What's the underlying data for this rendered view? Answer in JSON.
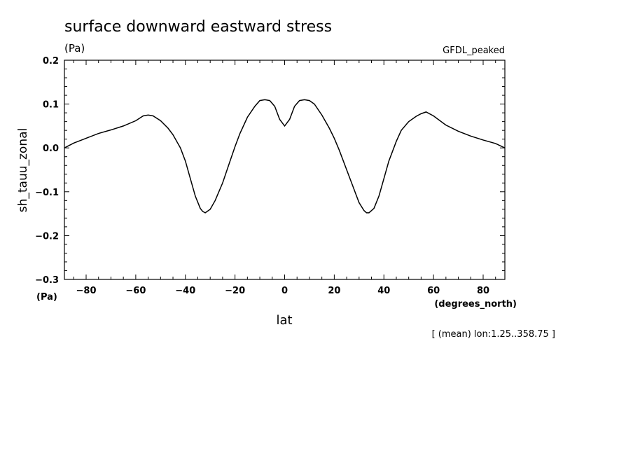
{
  "chart_data": {
    "type": "line",
    "title": "surface downward eastward stress",
    "units_label": "(Pa)",
    "model_label": "GFDL_peaked",
    "ylabel": "sh_tauu_zonal",
    "y_units_label": "(Pa)",
    "xlabel": "lat",
    "x_units_label": "(degrees_north)",
    "footnote": "[ (mean) lon:1.25..358.75 ]",
    "xlim": [
      -88.75,
      88.75
    ],
    "ylim": [
      -0.3,
      0.2
    ],
    "xticks": [
      -80,
      -60,
      -40,
      -20,
      0,
      20,
      40,
      60,
      80
    ],
    "xtick_labels": [
      "−80",
      "−60",
      "−40",
      "−20",
      "0",
      "20",
      "40",
      "60",
      "80"
    ],
    "yticks": [
      -0.3,
      -0.2,
      -0.1,
      0.0,
      0.1,
      0.2
    ],
    "ytick_labels": [
      "−0.3",
      "−0.2",
      "−0.1",
      "0.0",
      "0.1",
      "0.2"
    ],
    "grid": false,
    "series": [
      {
        "x": [
          -88.75,
          -85,
          -80,
          -75,
          -70,
          -65,
          -60,
          -57,
          -55,
          -53,
          -50,
          -47,
          -45,
          -42,
          -40,
          -38,
          -36,
          -34,
          -33,
          -32,
          -30,
          -28,
          -25,
          -22,
          -20,
          -18,
          -15,
          -12,
          -10,
          -8,
          -6,
          -4,
          -2,
          0,
          2,
          4,
          6,
          8,
          10,
          12,
          15,
          18,
          20,
          22,
          25,
          28,
          30,
          32,
          33,
          34,
          36,
          38,
          40,
          42,
          45,
          47,
          50,
          53,
          55,
          57,
          60,
          65,
          70,
          75,
          80,
          85,
          88.75
        ],
        "y": [
          0.0,
          0.011,
          0.022,
          0.033,
          0.041,
          0.05,
          0.062,
          0.073,
          0.075,
          0.073,
          0.062,
          0.045,
          0.03,
          0.0,
          -0.03,
          -0.07,
          -0.11,
          -0.138,
          -0.145,
          -0.148,
          -0.14,
          -0.12,
          -0.08,
          -0.03,
          0.003,
          0.033,
          0.07,
          0.095,
          0.108,
          0.11,
          0.108,
          0.095,
          0.065,
          0.05,
          0.065,
          0.095,
          0.108,
          0.11,
          0.108,
          0.1,
          0.075,
          0.045,
          0.022,
          -0.005,
          -0.05,
          -0.095,
          -0.125,
          -0.143,
          -0.148,
          -0.148,
          -0.138,
          -0.11,
          -0.07,
          -0.03,
          0.015,
          0.04,
          0.06,
          0.072,
          0.078,
          0.082,
          0.073,
          0.052,
          0.038,
          0.027,
          0.018,
          0.01,
          0.0
        ]
      }
    ]
  }
}
